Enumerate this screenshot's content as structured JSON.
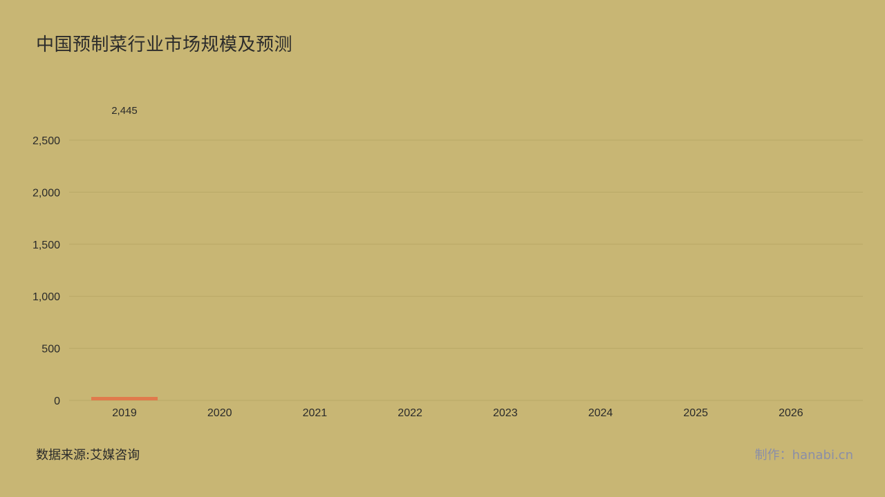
{
  "title": "中国预制菜行业市场规模及预测",
  "source": "数据来源:艾媒咨询",
  "credit": "制作：hanabi.cn",
  "colors": {
    "background": "#c8b674",
    "bar": "#e07a4c",
    "grid": "#b9a866",
    "text": "#2a2a2a"
  },
  "chart_data": {
    "type": "bar",
    "categories": [
      "2019",
      "2020",
      "2021",
      "2022",
      "2023",
      "2024",
      "2025",
      "2026"
    ],
    "values": [
      2445,
      null,
      null,
      null,
      null,
      null,
      null,
      null
    ],
    "value_labels": [
      "2,445",
      "",
      "",
      "",
      "",
      "",
      "",
      ""
    ],
    "y_ticks": [
      {
        "value": 0,
        "label": "0"
      },
      {
        "value": 500,
        "label": "500"
      },
      {
        "value": 1000,
        "label": "1,000"
      },
      {
        "value": 1500,
        "label": "1,500"
      },
      {
        "value": 2000,
        "label": "2,000"
      },
      {
        "value": 2500,
        "label": "2,500"
      }
    ],
    "ylim": [
      0,
      2500
    ],
    "grid": true,
    "title": "中国预制菜行业市场规模及预测",
    "xlabel": "",
    "ylabel": ""
  }
}
